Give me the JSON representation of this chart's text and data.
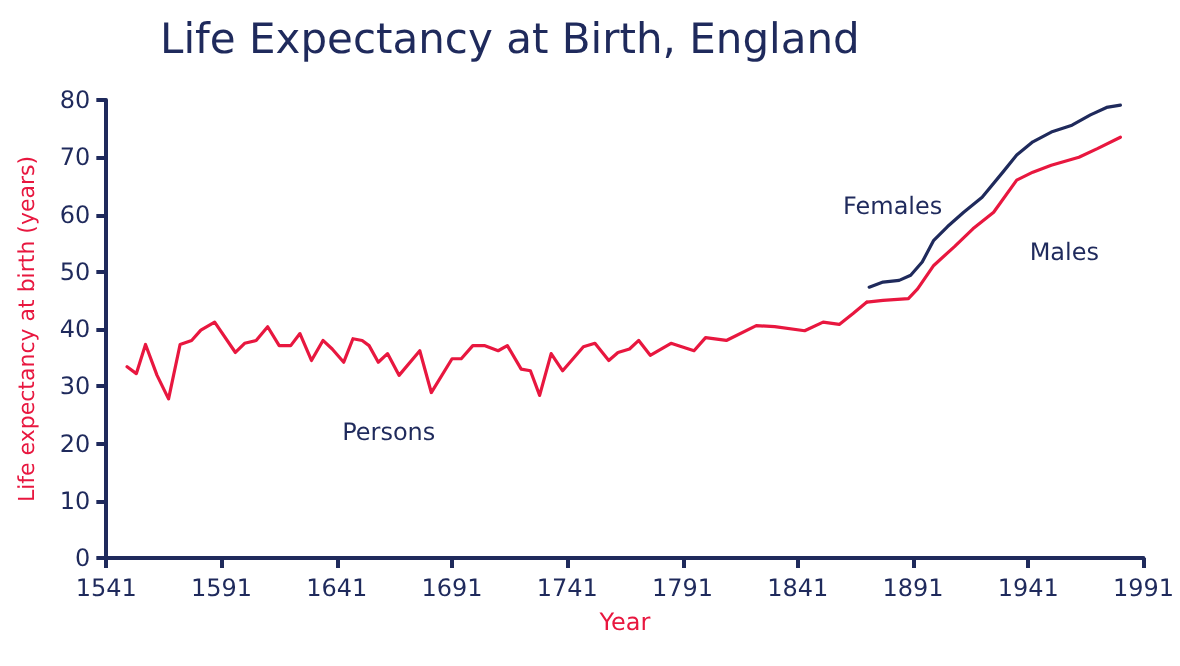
{
  "chart_data": {
    "type": "line",
    "title": "Life Expectancy at Birth, England",
    "xlabel": "Year",
    "ylabel": "Life expectancy at birth (years)",
    "xlim": [
      1541,
      1991
    ],
    "xticks": [
      1541,
      1591,
      1641,
      1691,
      1741,
      1791,
      1841,
      1891,
      1941,
      1991
    ],
    "ylim": [
      0,
      80
    ],
    "yticks": [
      0,
      10,
      20,
      30,
      40,
      50,
      60,
      70,
      80
    ],
    "grid": false,
    "legend": false,
    "marker": "none",
    "line_style": "solid",
    "series": [
      {
        "name": "Persons",
        "color": "#e8173f",
        "x": [
          1550,
          1554,
          1558,
          1563,
          1568,
          1573,
          1578,
          1582,
          1588,
          1597,
          1601,
          1606,
          1611,
          1616,
          1621,
          1625,
          1630,
          1635,
          1639,
          1644,
          1648,
          1652,
          1655,
          1659,
          1663,
          1668,
          1677,
          1682,
          1691,
          1695,
          1700,
          1705,
          1711,
          1715,
          1721,
          1725,
          1729,
          1734,
          1739,
          1748,
          1753,
          1759,
          1763,
          1768,
          1772,
          1777,
          1786,
          1796,
          1801,
          1810,
          1823,
          1831,
          1844,
          1852,
          1859,
          1865,
          1871
        ],
        "values": [
          33.4,
          32.2,
          37.3,
          31.9,
          27.8,
          37.3,
          38.0,
          39.8,
          41.2,
          35.9,
          37.5,
          38.0,
          40.4,
          37.1,
          37.1,
          39.2,
          34.5,
          38.0,
          36.5,
          34.2,
          38.3,
          38.0,
          37.1,
          34.2,
          35.7,
          31.9,
          36.2,
          28.9,
          34.8,
          34.8,
          37.1,
          37.1,
          36.2,
          37.1,
          33.0,
          32.7,
          28.4,
          35.7,
          32.7,
          36.9,
          37.5,
          34.5,
          35.9,
          36.5,
          38.0,
          35.4,
          37.5,
          36.2,
          38.5,
          38.0,
          40.6,
          40.4,
          39.7,
          41.2,
          40.8,
          42.7,
          44.7
        ]
      },
      {
        "name": "Males",
        "color": "#e8173f",
        "x": [
          1871,
          1878,
          1889,
          1893,
          1900,
          1909,
          1917,
          1926,
          1936,
          1943,
          1951,
          1963,
          1971,
          1981
        ],
        "values": [
          44.7,
          45.0,
          45.3,
          47.0,
          51.1,
          54.4,
          57.5,
          60.4,
          66.0,
          67.4,
          68.6,
          70.0,
          71.5,
          73.5
        ]
      },
      {
        "name": "Females",
        "color": "#1f2a5c",
        "x": [
          1872,
          1878,
          1885,
          1890,
          1895,
          1900,
          1906,
          1913,
          1921,
          1930,
          1936,
          1943,
          1951,
          1960,
          1968,
          1975,
          1981
        ],
        "values": [
          47.3,
          48.2,
          48.5,
          49.4,
          51.7,
          55.5,
          57.9,
          60.4,
          63.0,
          67.4,
          70.4,
          72.7,
          74.4,
          75.6,
          77.4,
          78.7,
          79.1
        ]
      }
    ]
  }
}
